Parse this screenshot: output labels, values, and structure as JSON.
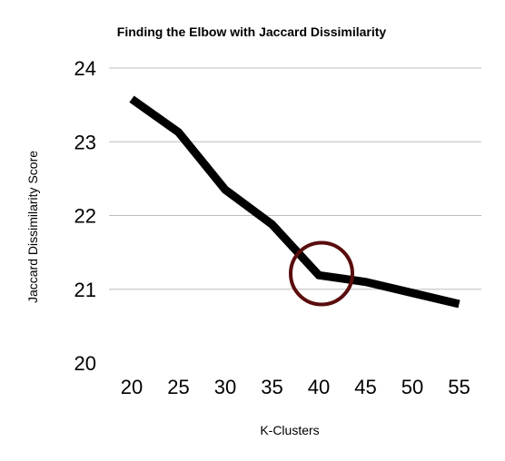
{
  "chart_data": {
    "type": "line",
    "title": "Finding the Elbow with Jaccard Dissimilarity",
    "xlabel": "K-Clusters",
    "ylabel": "Jaccard Dissimilarity Score",
    "x": [
      20,
      25,
      30,
      35,
      40,
      45,
      50,
      55
    ],
    "y_ticks": [
      20,
      21,
      22,
      23,
      24
    ],
    "ylim": [
      20,
      24
    ],
    "grid": "horizontal",
    "legend": "none",
    "series": [
      {
        "values": [
          23.58,
          23.13,
          22.35,
          21.88,
          21.19,
          21.1,
          20.95,
          20.8
        ],
        "color": "#000000"
      }
    ],
    "annotations": [
      {
        "type": "circle",
        "x": 40,
        "y": 21.2,
        "color": "#5a0d0d"
      }
    ]
  }
}
